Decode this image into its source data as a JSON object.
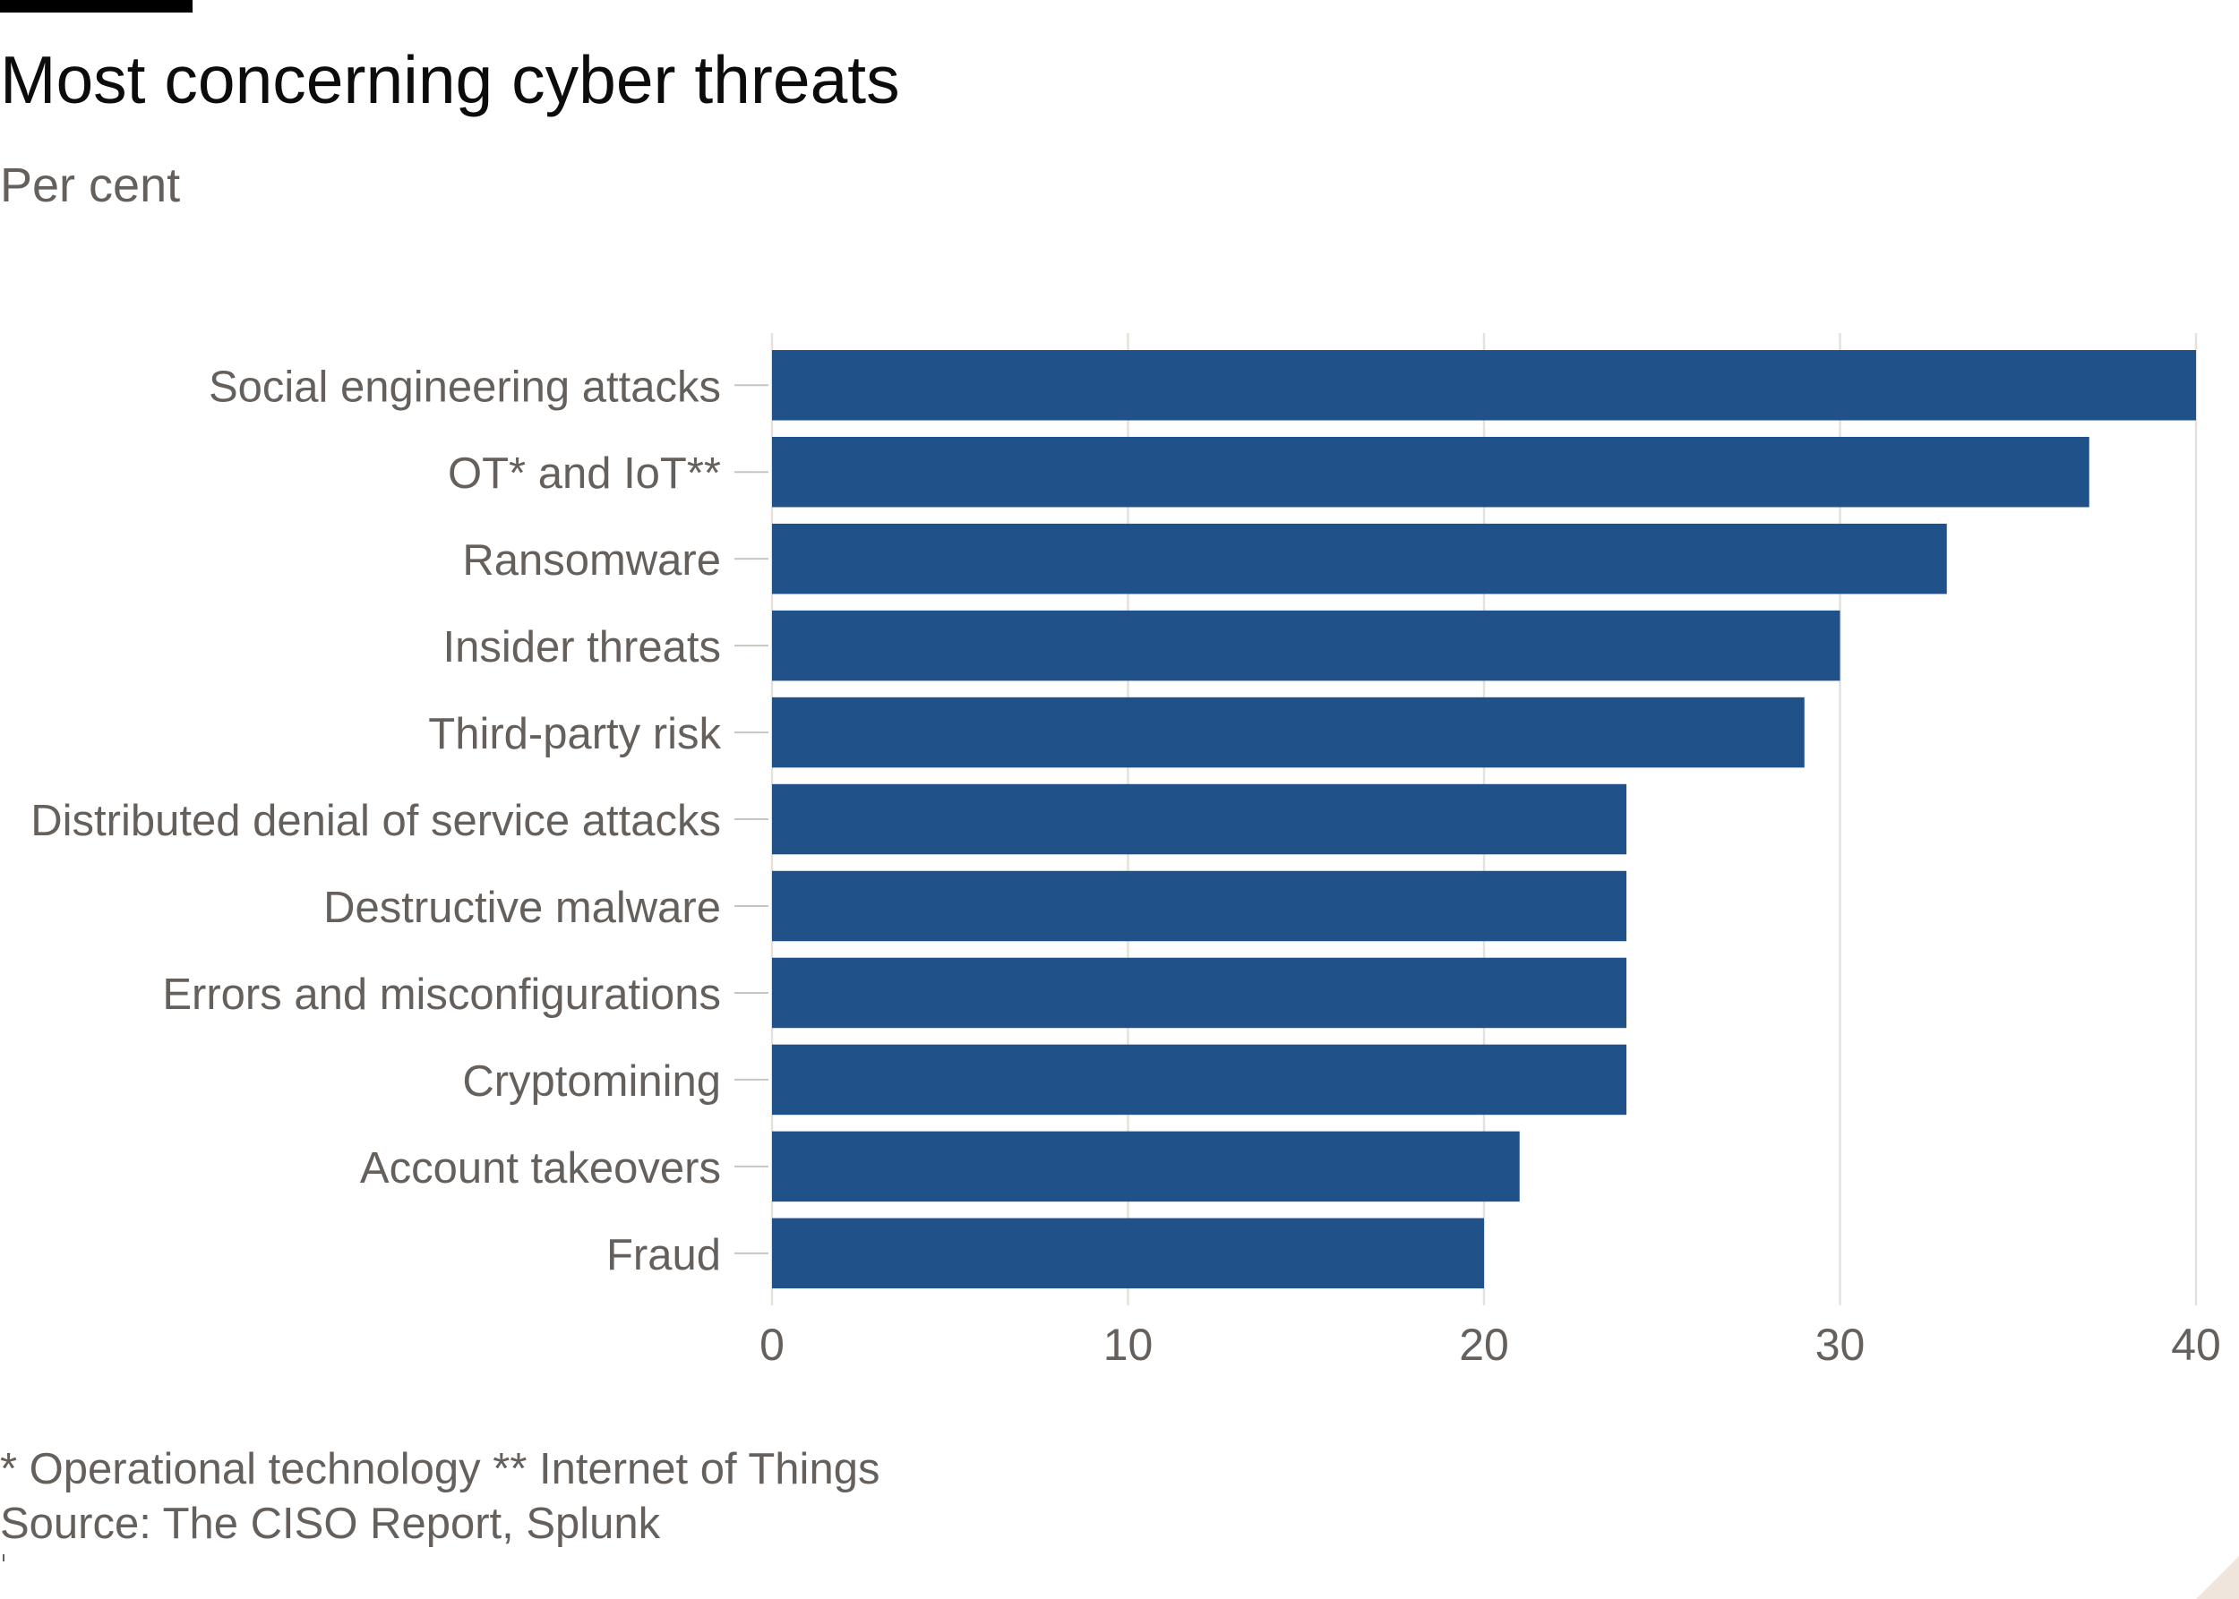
{
  "chart_data": {
    "type": "bar",
    "orientation": "horizontal",
    "title": "Most concerning cyber threats",
    "subtitle": "Per cent",
    "categories": [
      "Social engineering attacks",
      "OT* and IoT**",
      "Ransomware",
      "Insider threats",
      "Third-party risk",
      "Distributed denial of service attacks",
      "Destructive malware",
      "Errors and misconfigurations",
      "Cryptomining",
      "Account takeovers",
      "Fraud"
    ],
    "values": [
      40,
      37,
      33,
      30,
      29,
      24,
      24,
      24,
      24,
      21,
      20
    ],
    "xlim": [
      0,
      40
    ],
    "xticks": [
      0,
      10,
      20,
      30,
      40
    ],
    "grid": true,
    "xlabel": "",
    "ylabel": ""
  },
  "footer": {
    "footnote": "* Operational technology ** Internet of Things",
    "source": "Source: The CISO Report, Splunk"
  },
  "colors": {
    "bar": "#205189",
    "label_text": "#66605c",
    "gridline": "#e6e1dc",
    "tick": "#c9c4bf",
    "corner": "#efe5dd"
  }
}
